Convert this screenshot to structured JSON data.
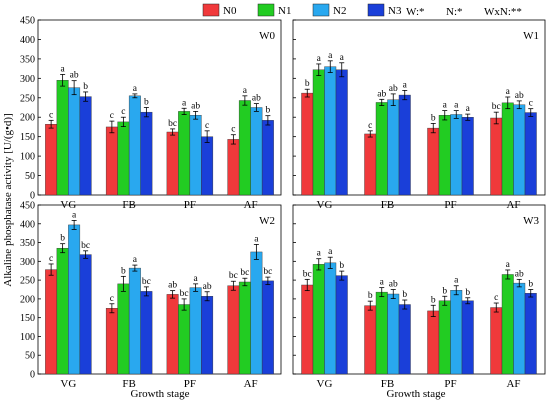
{
  "legend": [
    {
      "label": "N0",
      "color": "#f0393b"
    },
    {
      "label": "N1",
      "color": "#22cc22"
    },
    {
      "label": "N2",
      "color": "#29a8ef"
    },
    {
      "label": "N3",
      "color": "#1a3fd9"
    }
  ],
  "significance": {
    "w": "W:*",
    "n": "N:*",
    "wxn": "WxN:**"
  },
  "ylabel": "Alkaline phosphatase activity [U/(g•d)]",
  "xlabel": "Growth stage",
  "chart_data": [
    {
      "type": "bar",
      "title": "W0",
      "categories": [
        "VG",
        "FB",
        "PF",
        "AF"
      ],
      "ylim": [
        0,
        450
      ],
      "series": [
        {
          "name": "N0",
          "values": [
            182,
            175,
            162,
            143
          ],
          "errors": [
            10,
            15,
            8,
            12
          ],
          "letters": [
            "c",
            "c",
            "bc",
            "c"
          ]
        },
        {
          "name": "N1",
          "values": [
            295,
            188,
            215,
            243
          ],
          "errors": [
            15,
            12,
            8,
            12
          ],
          "letters": [
            "a",
            "c",
            "a",
            "a"
          ]
        },
        {
          "name": "N2",
          "values": [
            276,
            255,
            205,
            225
          ],
          "errors": [
            18,
            5,
            10,
            10
          ],
          "letters": [
            "ab",
            "a",
            "ab",
            "ab"
          ]
        },
        {
          "name": "N3",
          "values": [
            253,
            213,
            150,
            192
          ],
          "errors": [
            12,
            12,
            15,
            12
          ],
          "letters": [
            "b",
            "b",
            "c",
            "b"
          ]
        }
      ]
    },
    {
      "type": "bar",
      "title": "W1",
      "categories": [
        "VG",
        "FB",
        "PF",
        "AF"
      ],
      "ylim": [
        0,
        450
      ],
      "series": [
        {
          "name": "N0",
          "values": [
            262,
            157,
            172,
            198
          ],
          "errors": [
            10,
            8,
            12,
            15
          ],
          "letters": [
            "b",
            "c",
            "b",
            "bc"
          ]
        },
        {
          "name": "N1",
          "values": [
            322,
            238,
            205,
            237
          ],
          "errors": [
            15,
            8,
            12,
            15
          ],
          "letters": [
            "a",
            "ab",
            "a",
            "a"
          ]
        },
        {
          "name": "N2",
          "values": [
            330,
            245,
            207,
            232
          ],
          "errors": [
            15,
            15,
            10,
            10
          ],
          "letters": [
            "a",
            "ab",
            "a",
            "ab"
          ]
        },
        {
          "name": "N3",
          "values": [
            322,
            257,
            200,
            212
          ],
          "errors": [
            18,
            12,
            8,
            10
          ],
          "letters": [
            "a",
            "a",
            "a",
            "c"
          ]
        }
      ]
    },
    {
      "type": "bar",
      "title": "W2",
      "categories": [
        "VG",
        "FB",
        "PF",
        "AF"
      ],
      "ylim": [
        0,
        450
      ],
      "series": [
        {
          "name": "N0",
          "values": [
            278,
            175,
            212,
            235
          ],
          "errors": [
            15,
            12,
            10,
            12
          ],
          "letters": [
            "c",
            "c",
            "ab",
            "bc"
          ]
        },
        {
          "name": "N1",
          "values": [
            335,
            240,
            185,
            245
          ],
          "errors": [
            12,
            20,
            15,
            10
          ],
          "letters": [
            "b",
            "b",
            "bc",
            "bc"
          ]
        },
        {
          "name": "N2",
          "values": [
            397,
            282,
            230,
            325
          ],
          "errors": [
            12,
            8,
            10,
            20
          ],
          "letters": [
            "a",
            "a",
            "a",
            "a"
          ]
        },
        {
          "name": "N3",
          "values": [
            318,
            220,
            207,
            248
          ],
          "errors": [
            10,
            12,
            12,
            10
          ],
          "letters": [
            "bc",
            "bc",
            "ab",
            "bc"
          ]
        }
      ]
    },
    {
      "type": "bar",
      "title": "W3",
      "categories": [
        "VG",
        "FB",
        "PF",
        "AF"
      ],
      "ylim": [
        0,
        450
      ],
      "series": [
        {
          "name": "N0",
          "values": [
            237,
            182,
            168,
            177
          ],
          "errors": [
            15,
            12,
            15,
            12
          ],
          "letters": [
            "bc",
            "b",
            "b",
            "c"
          ]
        },
        {
          "name": "N1",
          "values": [
            292,
            218,
            195,
            265
          ],
          "errors": [
            15,
            12,
            12,
            12
          ],
          "letters": [
            "a",
            "a",
            "b",
            "a"
          ]
        },
        {
          "name": "N2",
          "values": [
            296,
            213,
            223,
            242
          ],
          "errors": [
            15,
            12,
            12,
            10
          ],
          "letters": [
            "a",
            "ab",
            "a",
            "ab"
          ]
        },
        {
          "name": "N3",
          "values": [
            262,
            185,
            195,
            215
          ],
          "errors": [
            12,
            12,
            8,
            10
          ],
          "letters": [
            "b",
            "b",
            "b",
            "b"
          ]
        }
      ]
    }
  ]
}
